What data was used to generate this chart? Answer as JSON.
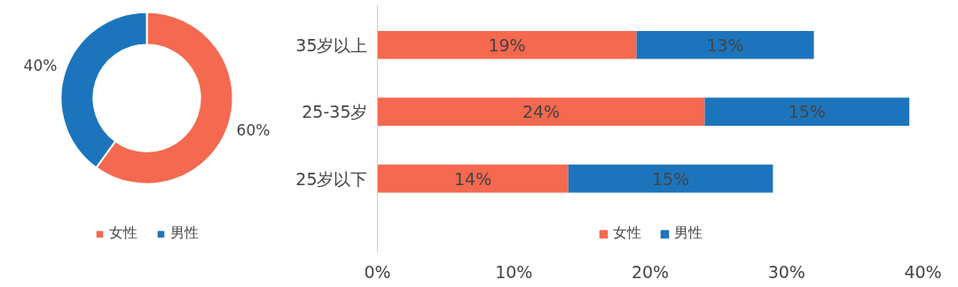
{
  "chart_data": [
    {
      "type": "donut",
      "categories": [
        "女性",
        "男性"
      ],
      "values": [
        60,
        40
      ],
      "colors": [
        "#f4694f",
        "#1c75bc"
      ],
      "value_labels": [
        "60%",
        "40%"
      ],
      "legend": "bottom"
    },
    {
      "type": "bar",
      "orientation": "horizontal",
      "stacked": true,
      "categories": [
        "35岁以上",
        "25-35岁",
        "25岁以下"
      ],
      "series": [
        {
          "name": "女性",
          "color": "#f4694f",
          "values": [
            19,
            24,
            14
          ],
          "value_labels": [
            "19%",
            "24%",
            "14%"
          ]
        },
        {
          "name": "男性",
          "color": "#1c75bc",
          "values": [
            13,
            15,
            15
          ],
          "value_labels": [
            "13%",
            "15%",
            "15%"
          ]
        }
      ],
      "xlim": [
        0,
        40
      ],
      "xticks": [
        {
          "value": 0,
          "label": "0%"
        },
        {
          "value": 10,
          "label": "10%"
        },
        {
          "value": 20,
          "label": "20%"
        },
        {
          "value": 30,
          "label": "30%"
        },
        {
          "value": 40,
          "label": "40%"
        }
      ],
      "grid": false,
      "legend": "bottom"
    }
  ]
}
